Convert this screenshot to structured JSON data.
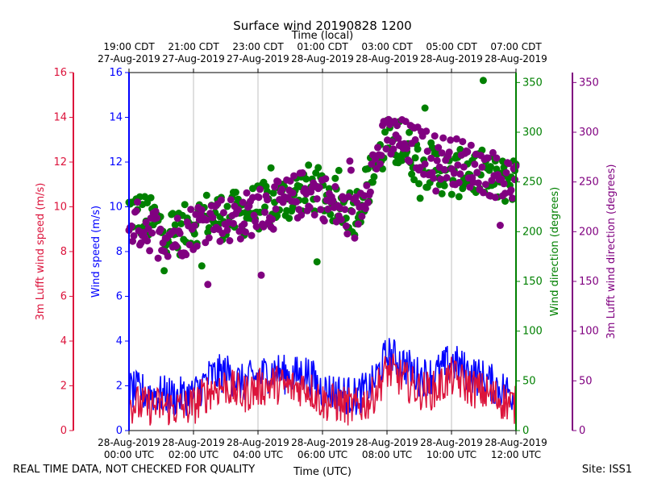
{
  "footer": {
    "quality_note": "REAL TIME DATA, NOT CHECKED FOR QUALITY",
    "site": "Site: ISS1"
  },
  "chart_data": {
    "type": "line",
    "title": "Surface wind 20190828 1200",
    "xlabel": "Time (UTC)",
    "top_xlabel": "Time (local)",
    "grid": "vertical",
    "x_hours_range": [
      0,
      12
    ],
    "bottom_ticks": [
      {
        "hour": 0,
        "l1": "28-Aug-2019",
        "l2": "00:00 UTC"
      },
      {
        "hour": 2,
        "l1": "28-Aug-2019",
        "l2": "02:00 UTC"
      },
      {
        "hour": 4,
        "l1": "28-Aug-2019",
        "l2": "04:00 UTC"
      },
      {
        "hour": 6,
        "l1": "28-Aug-2019",
        "l2": "06:00 UTC"
      },
      {
        "hour": 8,
        "l1": "28-Aug-2019",
        "l2": "08:00 UTC"
      },
      {
        "hour": 10,
        "l1": "28-Aug-2019",
        "l2": "10:00 UTC"
      },
      {
        "hour": 12,
        "l1": "28-Aug-2019",
        "l2": "12:00 UTC"
      }
    ],
    "top_ticks": [
      {
        "hour": 0,
        "l1": "19:00 CDT",
        "l2": "27-Aug-2019"
      },
      {
        "hour": 2,
        "l1": "21:00 CDT",
        "l2": "27-Aug-2019"
      },
      {
        "hour": 4,
        "l1": "23:00 CDT",
        "l2": "27-Aug-2019"
      },
      {
        "hour": 6,
        "l1": "01:00 CDT",
        "l2": "28-Aug-2019"
      },
      {
        "hour": 8,
        "l1": "03:00 CDT",
        "l2": "28-Aug-2019"
      },
      {
        "hour": 10,
        "l1": "05:00 CDT",
        "l2": "28-Aug-2019"
      },
      {
        "hour": 12,
        "l1": "07:00 CDT",
        "l2": "28-Aug-2019"
      }
    ],
    "axes": {
      "speed_left": {
        "label": "Wind speed (m/s)",
        "color": "#0000ff",
        "ylim": [
          0,
          16
        ],
        "ticks": [
          0,
          2,
          4,
          6,
          8,
          10,
          12,
          14,
          16
        ]
      },
      "lufft_speed": {
        "label": "3m Lufft wind speed (m/s)",
        "color": "#dc143c",
        "ylim": [
          0,
          16
        ],
        "ticks": [
          0,
          2,
          4,
          6,
          8,
          10,
          12,
          14,
          16
        ]
      },
      "direction": {
        "label": "Wind direction (degrees)",
        "color": "#008000",
        "ylim": [
          0,
          360
        ],
        "ticks": [
          0,
          50,
          100,
          150,
          200,
          250,
          300,
          350
        ]
      },
      "lufft_direction": {
        "label": "3m Lufft wind direction (degrees)",
        "color": "#800080",
        "ylim": [
          0,
          360
        ],
        "ticks": [
          0,
          50,
          100,
          150,
          200,
          250,
          300,
          350
        ]
      }
    },
    "series": [
      {
        "name": "Wind speed (m/s)",
        "kind": "line",
        "axis": "speed_left",
        "color": "#0000ff",
        "hours": [
          0,
          0.5,
          1,
          1.5,
          2,
          2.5,
          3,
          3.5,
          4,
          4.5,
          5,
          5.5,
          6,
          6.5,
          7,
          7.5,
          8,
          8.5,
          9,
          9.5,
          10,
          10.5,
          11,
          11.5,
          12
        ],
        "values": [
          1.8,
          1.7,
          1.6,
          1.5,
          1.6,
          2.4,
          2.6,
          2.1,
          2.4,
          2.7,
          2.4,
          2.6,
          1.8,
          1.7,
          1.5,
          1.9,
          3.4,
          3.0,
          2.4,
          2.5,
          3.1,
          2.6,
          2.3,
          1.9,
          1.6
        ]
      },
      {
        "name": "3m Lufft wind speed (m/s)",
        "kind": "line",
        "axis": "lufft_speed",
        "color": "#dc143c",
        "hours": [
          0,
          0.5,
          1,
          1.5,
          2,
          2.5,
          3,
          3.5,
          4,
          4.5,
          5,
          5.5,
          6,
          6.5,
          7,
          7.5,
          8,
          8.5,
          9,
          9.5,
          10,
          10.5,
          11,
          11.5,
          12
        ],
        "values": [
          1.2,
          1.1,
          1.1,
          1.0,
          1.1,
          1.8,
          2.0,
          1.6,
          1.9,
          2.1,
          1.9,
          2.0,
          1.3,
          1.2,
          1.0,
          1.4,
          2.7,
          2.3,
          1.8,
          1.8,
          2.4,
          2.0,
          1.7,
          1.4,
          1.1
        ]
      },
      {
        "name": "Wind direction (degrees)",
        "kind": "scatter",
        "axis": "direction",
        "color": "#008000",
        "hours": [
          0,
          0.5,
          1,
          1.5,
          2,
          2.5,
          3,
          3.5,
          4,
          4.5,
          5,
          5.5,
          6,
          6.5,
          7,
          7.5,
          8,
          8.5,
          9,
          9.5,
          10,
          10.5,
          11,
          11.5,
          12
        ],
        "values": [
          222,
          215,
          205,
          198,
          210,
          218,
          215,
          218,
          225,
          228,
          235,
          245,
          240,
          228,
          220,
          255,
          290,
          285,
          270,
          265,
          255,
          262,
          258,
          250,
          255
        ]
      },
      {
        "name": "3m Lufft wind direction (degrees)",
        "kind": "scatter",
        "axis": "lufft_direction",
        "color": "#800080",
        "hours": [
          0,
          0.5,
          1,
          1.5,
          2,
          2.5,
          3,
          3.5,
          4,
          4.5,
          5,
          5.5,
          6,
          6.5,
          7,
          7.5,
          8,
          8.5,
          9,
          9.5,
          10,
          10.5,
          11,
          11.5,
          12
        ],
        "values": [
          210,
          205,
          200,
          195,
          205,
          215,
          212,
          215,
          222,
          226,
          232,
          240,
          236,
          222,
          212,
          262,
          295,
          290,
          282,
          276,
          272,
          268,
          262,
          255,
          250
        ]
      }
    ]
  }
}
